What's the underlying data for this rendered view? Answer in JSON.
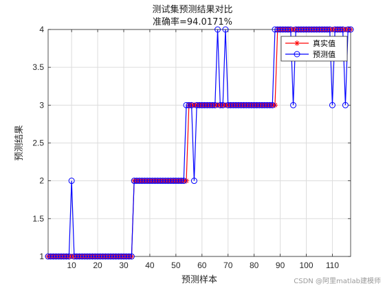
{
  "chart_data": {
    "type": "line",
    "title": "测试集预测结果对比",
    "subtitle": "准确率=94.0171%",
    "xlabel": "预测样本",
    "ylabel": "预测结果",
    "xlim": [
      1,
      117
    ],
    "ylim": [
      1,
      4
    ],
    "xticks": [
      10,
      20,
      30,
      40,
      50,
      60,
      70,
      80,
      90,
      100,
      110
    ],
    "yticks": [
      1,
      1.5,
      2,
      2.5,
      3,
      3.5,
      4
    ],
    "grid": true,
    "legend_position": "top-right",
    "x": [
      1,
      2,
      3,
      4,
      5,
      6,
      7,
      8,
      9,
      10,
      11,
      12,
      13,
      14,
      15,
      16,
      17,
      18,
      19,
      20,
      21,
      22,
      23,
      24,
      25,
      26,
      27,
      28,
      29,
      30,
      31,
      32,
      33,
      34,
      35,
      36,
      37,
      38,
      39,
      40,
      41,
      42,
      43,
      44,
      45,
      46,
      47,
      48,
      49,
      50,
      51,
      52,
      53,
      54,
      55,
      56,
      57,
      58,
      59,
      60,
      61,
      62,
      63,
      64,
      65,
      66,
      67,
      68,
      69,
      70,
      71,
      72,
      73,
      74,
      75,
      76,
      77,
      78,
      79,
      80,
      81,
      82,
      83,
      84,
      85,
      86,
      87,
      88,
      89,
      90,
      91,
      92,
      93,
      94,
      95,
      96,
      97,
      98,
      99,
      100,
      101,
      102,
      103,
      104,
      105,
      106,
      107,
      108,
      109,
      110,
      111,
      112,
      113,
      114,
      115,
      116,
      117
    ],
    "series": [
      {
        "name": "真实值",
        "color": "#ff0000",
        "marker": "asterisk",
        "values": [
          1,
          1,
          1,
          1,
          1,
          1,
          1,
          1,
          1,
          1,
          1,
          1,
          1,
          1,
          1,
          1,
          1,
          1,
          1,
          1,
          1,
          1,
          1,
          1,
          1,
          1,
          1,
          1,
          1,
          1,
          1,
          1,
          1,
          2,
          2,
          2,
          2,
          2,
          2,
          2,
          2,
          2,
          2,
          2,
          2,
          2,
          2,
          2,
          2,
          2,
          2,
          2,
          2,
          2,
          3,
          3,
          3,
          3,
          3,
          3,
          3,
          3,
          3,
          3,
          3,
          3,
          3,
          3,
          3,
          3,
          3,
          3,
          3,
          3,
          3,
          3,
          3,
          3,
          3,
          3,
          3,
          3,
          3,
          3,
          3,
          3,
          3,
          3,
          4,
          4,
          4,
          4,
          4,
          4,
          4,
          4,
          4,
          4,
          4,
          4,
          4,
          4,
          4,
          4,
          4,
          4,
          4,
          4,
          4,
          4,
          4,
          4,
          4,
          4,
          4,
          4,
          4
        ]
      },
      {
        "name": "预测值",
        "color": "#0000ff",
        "marker": "circle",
        "values": [
          1,
          1,
          1,
          1,
          1,
          1,
          1,
          1,
          1,
          2,
          1,
          1,
          1,
          1,
          1,
          1,
          1,
          1,
          1,
          1,
          1,
          1,
          1,
          1,
          1,
          1,
          1,
          1,
          1,
          1,
          1,
          1,
          1,
          2,
          2,
          2,
          2,
          2,
          2,
          2,
          2,
          2,
          2,
          2,
          2,
          2,
          2,
          2,
          2,
          2,
          2,
          2,
          2,
          3,
          3,
          3,
          2,
          3,
          3,
          3,
          3,
          3,
          3,
          3,
          3,
          4,
          3,
          3,
          4,
          3,
          3,
          3,
          3,
          3,
          3,
          3,
          3,
          3,
          3,
          3,
          3,
          3,
          3,
          3,
          3,
          3,
          3,
          4,
          4,
          4,
          4,
          4,
          4,
          4,
          3,
          4,
          4,
          4,
          4,
          4,
          4,
          4,
          4,
          4,
          4,
          4,
          4,
          4,
          4,
          3,
          4,
          4,
          4,
          4,
          3,
          4,
          4
        ]
      }
    ]
  },
  "watermark": "CSDN @阿里matlab建模师"
}
